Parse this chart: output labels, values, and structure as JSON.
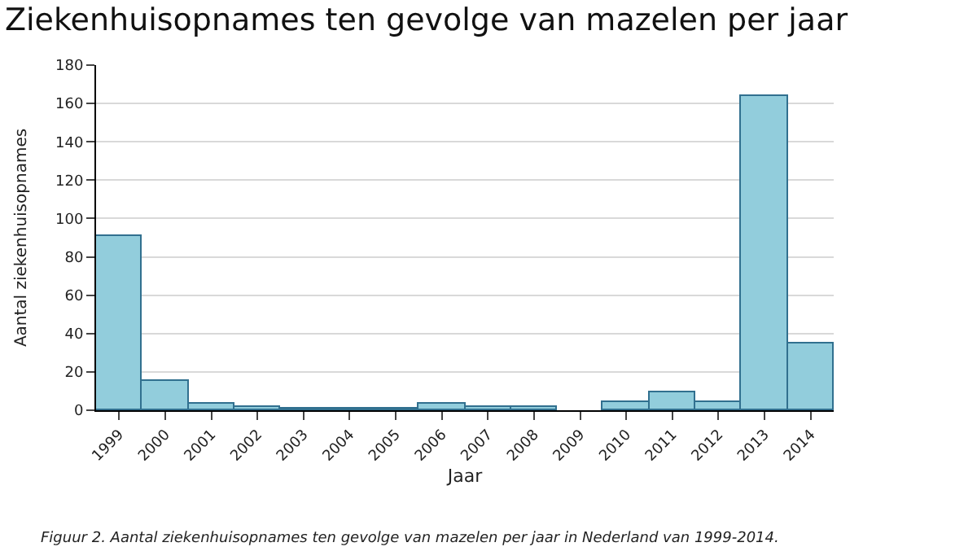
{
  "chart_data": {
    "type": "bar",
    "title": "Ziekenhuisopnames ten gevolge van mazelen per jaar",
    "xlabel": "Jaar",
    "ylabel": "Aantal ziekenhuisopnames",
    "categories": [
      "1999",
      "2000",
      "2001",
      "2002",
      "2003",
      "2004",
      "2005",
      "2006",
      "2007",
      "2008",
      "2009",
      "2010",
      "2011",
      "2012",
      "2013",
      "2014"
    ],
    "values": [
      91,
      15,
      3,
      2,
      1,
      1,
      1,
      3,
      2,
      2,
      0,
      4,
      9,
      4,
      164,
      35
    ],
    "color": "#92cddc",
    "ylim": [
      0,
      180
    ],
    "yticks": [
      0,
      20,
      40,
      60,
      80,
      100,
      120,
      140,
      160,
      180
    ],
    "grid": "y",
    "annotations": [
      "Figuur 2. Aantal ziekenhuisopnames ten gevolge van mazelen per jaar in Nederland van 1999-2014."
    ]
  }
}
